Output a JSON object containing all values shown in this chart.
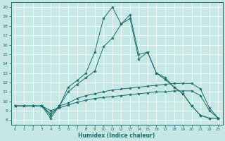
{
  "xlabel": "Humidex (Indice chaleur)",
  "bg_color": "#c5e8e5",
  "line_color": "#1a6b6b",
  "grid_color": "#ffffff",
  "xlim": [
    -0.5,
    23.5
  ],
  "ylim": [
    7.5,
    20.5
  ],
  "yticks": [
    8,
    9,
    10,
    11,
    12,
    13,
    14,
    15,
    16,
    17,
    18,
    19,
    20
  ],
  "xticks": [
    0,
    1,
    2,
    3,
    4,
    5,
    6,
    7,
    8,
    9,
    10,
    11,
    12,
    13,
    14,
    15,
    16,
    17,
    18,
    19,
    20,
    21,
    22,
    23
  ],
  "curves": [
    {
      "x": [
        0,
        2,
        3,
        4,
        5,
        6,
        7,
        8,
        9,
        10,
        11,
        12,
        13,
        14,
        15,
        16,
        17,
        18,
        19,
        20,
        21,
        22,
        23
      ],
      "y": [
        9.5,
        9.5,
        9.5,
        8.2,
        9.5,
        11.5,
        12.2,
        13.0,
        15.2,
        18.8,
        20.0,
        18.2,
        18.8,
        14.5,
        15.2,
        13.0,
        12.3,
        11.5,
        10.8,
        9.5,
        8.5,
        8.2,
        8.2
      ]
    },
    {
      "x": [
        0,
        2,
        3,
        4,
        5,
        6,
        7,
        8,
        9,
        10,
        11,
        12,
        13,
        14,
        15,
        16,
        17,
        18,
        19,
        20,
        21,
        22,
        23
      ],
      "y": [
        9.5,
        9.5,
        9.5,
        8.5,
        9.5,
        11.0,
        11.8,
        12.5,
        13.2,
        15.8,
        16.7,
        18.2,
        19.2,
        15.0,
        15.2,
        13.0,
        12.5,
        11.5,
        10.8,
        9.5,
        8.5,
        8.2,
        8.2
      ]
    },
    {
      "x": [
        0,
        1,
        2,
        3,
        4,
        5,
        6,
        7,
        8,
        9,
        10,
        11,
        12,
        13,
        14,
        15,
        16,
        17,
        18,
        19,
        20,
        21,
        22,
        23
      ],
      "y": [
        9.5,
        9.5,
        9.5,
        9.5,
        8.7,
        9.5,
        9.8,
        10.3,
        10.6,
        10.8,
        11.0,
        11.2,
        11.3,
        11.4,
        11.5,
        11.6,
        11.7,
        11.8,
        11.9,
        11.9,
        11.9,
        11.3,
        9.3,
        8.2
      ]
    },
    {
      "x": [
        0,
        1,
        2,
        3,
        4,
        5,
        6,
        7,
        8,
        9,
        10,
        11,
        12,
        13,
        14,
        15,
        16,
        17,
        18,
        19,
        20,
        21,
        22,
        23
      ],
      "y": [
        9.5,
        9.5,
        9.5,
        9.5,
        9.0,
        9.3,
        9.6,
        9.9,
        10.1,
        10.3,
        10.4,
        10.5,
        10.6,
        10.7,
        10.8,
        10.9,
        11.0,
        11.0,
        11.1,
        11.1,
        11.1,
        10.6,
        9.0,
        8.2
      ]
    }
  ]
}
